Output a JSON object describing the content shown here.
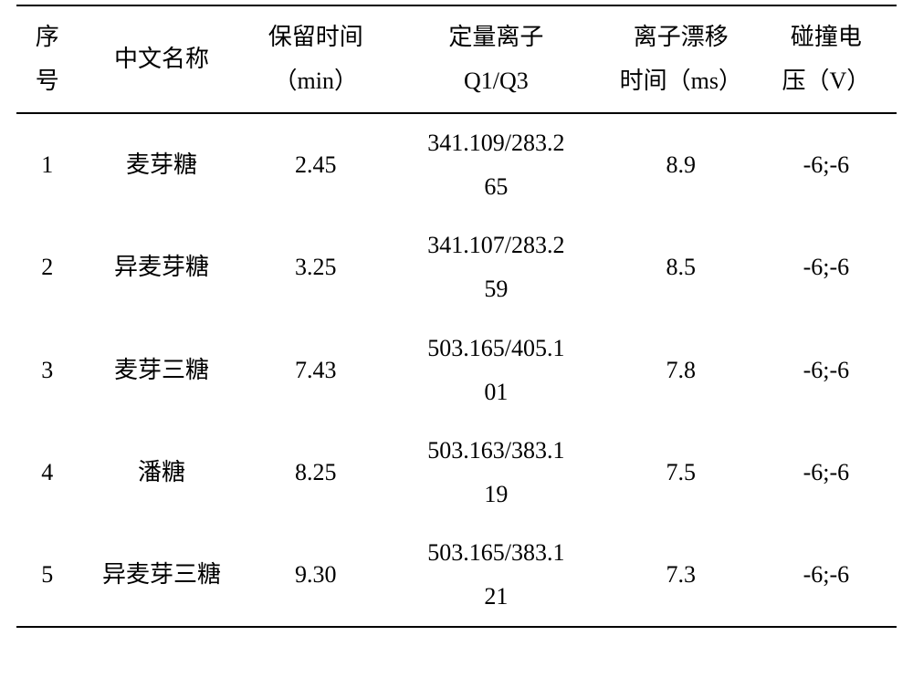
{
  "table": {
    "headers": {
      "seq": {
        "line1": "序",
        "line2": "号"
      },
      "name": "中文名称",
      "rt": {
        "line1": "保留时间",
        "line2": "（min）"
      },
      "ion": {
        "line1": "定量离子",
        "line2": "Q1/Q3"
      },
      "drift": {
        "line1": "离子漂移",
        "line2": "时间（ms）"
      },
      "ce": {
        "line1": "碰撞电",
        "line2": "压（V）"
      }
    },
    "rows": [
      {
        "seq": "1",
        "name": "麦芽糖",
        "rt": "2.45",
        "ion_l1": "341.109/283.2",
        "ion_l2": "65",
        "drift": "8.9",
        "ce": "-6;-6"
      },
      {
        "seq": "2",
        "name": "异麦芽糖",
        "rt": "3.25",
        "ion_l1": "341.107/283.2",
        "ion_l2": "59",
        "drift": "8.5",
        "ce": "-6;-6"
      },
      {
        "seq": "3",
        "name": "麦芽三糖",
        "rt": "7.43",
        "ion_l1": "503.165/405.1",
        "ion_l2": "01",
        "drift": "7.8",
        "ce": "-6;-6"
      },
      {
        "seq": "4",
        "name": "潘糖",
        "rt": "8.25",
        "ion_l1": "503.163/383.1",
        "ion_l2": "19",
        "drift": "7.5",
        "ce": "-6;-6"
      },
      {
        "seq": "5",
        "name": "异麦芽三糖",
        "rt": "9.30",
        "ion_l1": "503.165/383.1",
        "ion_l2": "21",
        "drift": "7.3",
        "ce": "-6;-6"
      }
    ]
  },
  "style": {
    "background_color": "#ffffff",
    "font_family": "SimSun",
    "font_size": 26,
    "line_height": 1.85,
    "border_color": "#000000",
    "border_width": 2,
    "col_widths": {
      "seq": "7%",
      "name": "19%",
      "rt": "16%",
      "ion": "25%",
      "drift": "17%",
      "ce": "16%"
    }
  }
}
